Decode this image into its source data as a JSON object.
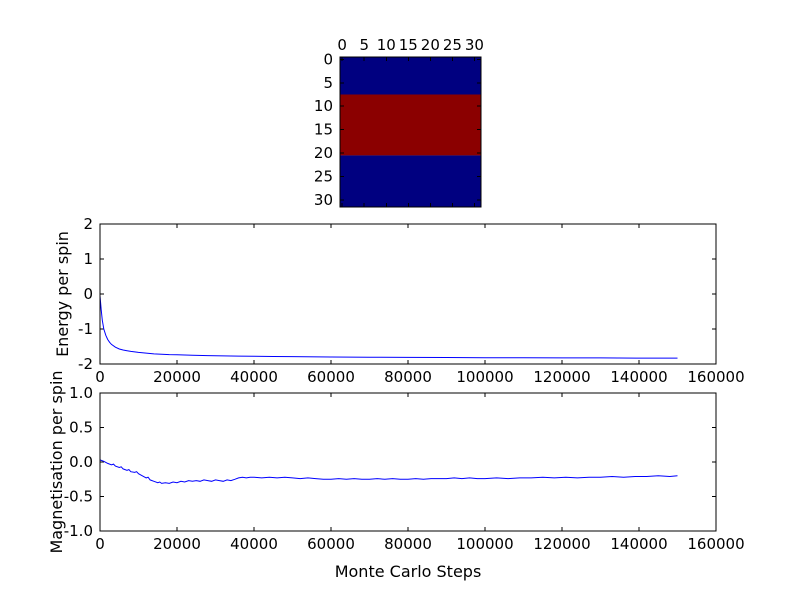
{
  "figure": {
    "background": "#ffffff",
    "line_color": "#0000ff",
    "axis_color": "#000000"
  },
  "chart_data": [
    {
      "type": "heatmap",
      "name": "spin-lattice",
      "description": "32x32 Ising model spin lattice, origin upper, x ticks on top",
      "extent": [
        -0.5,
        31.5
      ],
      "x_ticks": [
        0,
        5,
        10,
        15,
        20,
        25,
        30
      ],
      "x_tick_labels": [
        "0",
        "5",
        "10",
        "15",
        "20",
        "25",
        "30"
      ],
      "y_ticks": [
        0,
        5,
        10,
        15,
        20,
        25,
        30
      ],
      "y_tick_labels": [
        "0",
        "5",
        "10",
        "15",
        "20",
        "25",
        "30"
      ],
      "bands": [
        {
          "row_start": -0.5,
          "row_end": 7.5,
          "value": -1
        },
        {
          "row_start": 7.5,
          "row_end": 20.5,
          "value": 1
        },
        {
          "row_start": 20.5,
          "row_end": 31.5,
          "value": -1
        }
      ],
      "colors": {
        "-1": "#000080",
        "1": "#8b0000"
      }
    },
    {
      "type": "line",
      "name": "energy-per-spin",
      "xlabel": "",
      "ylabel": "Energy per spin",
      "xlim": [
        0,
        160000
      ],
      "ylim": [
        -2,
        2
      ],
      "x_ticks": [
        0,
        20000,
        40000,
        60000,
        80000,
        100000,
        120000,
        140000,
        160000
      ],
      "x_tick_labels": [
        "0",
        "20000",
        "40000",
        "60000",
        "80000",
        "100000",
        "120000",
        "140000",
        "160000"
      ],
      "y_ticks": [
        -2,
        -1,
        0,
        1,
        2
      ],
      "y_tick_labels": [
        "-2",
        "-1",
        "0",
        "1",
        "2"
      ],
      "points": [
        [
          0,
          -0.05
        ],
        [
          300,
          -0.45
        ],
        [
          600,
          -0.75
        ],
        [
          1000,
          -1.0
        ],
        [
          1500,
          -1.18
        ],
        [
          2000,
          -1.3
        ],
        [
          2500,
          -1.38
        ],
        [
          3000,
          -1.44
        ],
        [
          4000,
          -1.52
        ],
        [
          5000,
          -1.57
        ],
        [
          6000,
          -1.6
        ],
        [
          7000,
          -1.62
        ],
        [
          8000,
          -1.64
        ],
        [
          10000,
          -1.67
        ],
        [
          12000,
          -1.69
        ],
        [
          14000,
          -1.71
        ],
        [
          16000,
          -1.72
        ],
        [
          18000,
          -1.73
        ],
        [
          20000,
          -1.735
        ],
        [
          24000,
          -1.75
        ],
        [
          28000,
          -1.76
        ],
        [
          32000,
          -1.77
        ],
        [
          36000,
          -1.775
        ],
        [
          40000,
          -1.78
        ],
        [
          45000,
          -1.785
        ],
        [
          50000,
          -1.79
        ],
        [
          60000,
          -1.8
        ],
        [
          70000,
          -1.805
        ],
        [
          80000,
          -1.81
        ],
        [
          90000,
          -1.815
        ],
        [
          100000,
          -1.82
        ],
        [
          110000,
          -1.82
        ],
        [
          120000,
          -1.825
        ],
        [
          130000,
          -1.825
        ],
        [
          140000,
          -1.83
        ],
        [
          150000,
          -1.83
        ]
      ]
    },
    {
      "type": "line",
      "name": "magnetisation-per-spin",
      "xlabel": "Monte Carlo Steps",
      "ylabel": "Magnetisation per spin",
      "xlim": [
        0,
        160000
      ],
      "ylim": [
        -1,
        1
      ],
      "x_ticks": [
        0,
        20000,
        40000,
        60000,
        80000,
        100000,
        120000,
        140000,
        160000
      ],
      "x_tick_labels": [
        "0",
        "20000",
        "40000",
        "60000",
        "80000",
        "100000",
        "120000",
        "140000",
        "160000"
      ],
      "y_ticks": [
        -1.0,
        -0.5,
        0.0,
        0.5,
        1.0
      ],
      "y_tick_labels": [
        "-1.0",
        "-0.5",
        "0.0",
        "0.5",
        "1.0"
      ],
      "points": [
        [
          0,
          0.03
        ],
        [
          1000,
          0.01
        ],
        [
          2000,
          -0.02
        ],
        [
          3000,
          -0.04
        ],
        [
          3500,
          -0.03
        ],
        [
          4000,
          -0.06
        ],
        [
          5000,
          -0.08
        ],
        [
          5500,
          -0.07
        ],
        [
          6000,
          -0.1
        ],
        [
          7000,
          -0.12
        ],
        [
          7500,
          -0.11
        ],
        [
          8000,
          -0.14
        ],
        [
          9000,
          -0.15
        ],
        [
          9500,
          -0.14
        ],
        [
          10000,
          -0.17
        ],
        [
          11000,
          -0.2
        ],
        [
          12000,
          -0.23
        ],
        [
          12500,
          -0.22
        ],
        [
          13000,
          -0.26
        ],
        [
          14000,
          -0.28
        ],
        [
          15000,
          -0.3
        ],
        [
          15500,
          -0.29
        ],
        [
          16000,
          -0.31
        ],
        [
          17000,
          -0.3
        ],
        [
          18000,
          -0.31
        ],
        [
          19000,
          -0.29
        ],
        [
          20000,
          -0.3
        ],
        [
          21000,
          -0.28
        ],
        [
          22000,
          -0.29
        ],
        [
          23000,
          -0.27
        ],
        [
          24000,
          -0.28
        ],
        [
          25000,
          -0.27
        ],
        [
          26000,
          -0.28
        ],
        [
          27000,
          -0.26
        ],
        [
          28000,
          -0.27
        ],
        [
          29000,
          -0.28
        ],
        [
          30000,
          -0.26
        ],
        [
          31000,
          -0.27
        ],
        [
          32000,
          -0.28
        ],
        [
          33000,
          -0.26
        ],
        [
          34000,
          -0.27
        ],
        [
          35000,
          -0.25
        ],
        [
          36000,
          -0.23
        ],
        [
          37000,
          -0.22
        ],
        [
          38000,
          -0.23
        ],
        [
          39000,
          -0.22
        ],
        [
          40000,
          -0.22
        ],
        [
          42000,
          -0.23
        ],
        [
          44000,
          -0.22
        ],
        [
          46000,
          -0.23
        ],
        [
          48000,
          -0.22
        ],
        [
          50000,
          -0.23
        ],
        [
          52000,
          -0.24
        ],
        [
          54000,
          -0.23
        ],
        [
          56000,
          -0.24
        ],
        [
          58000,
          -0.25
        ],
        [
          60000,
          -0.25
        ],
        [
          62000,
          -0.24
        ],
        [
          64000,
          -0.25
        ],
        [
          66000,
          -0.24
        ],
        [
          68000,
          -0.25
        ],
        [
          70000,
          -0.25
        ],
        [
          72000,
          -0.24
        ],
        [
          74000,
          -0.25
        ],
        [
          76000,
          -0.24
        ],
        [
          78000,
          -0.25
        ],
        [
          80000,
          -0.25
        ],
        [
          82000,
          -0.24
        ],
        [
          84000,
          -0.25
        ],
        [
          86000,
          -0.24
        ],
        [
          88000,
          -0.24
        ],
        [
          90000,
          -0.24
        ],
        [
          92000,
          -0.23
        ],
        [
          94000,
          -0.24
        ],
        [
          96000,
          -0.23
        ],
        [
          98000,
          -0.24
        ],
        [
          100000,
          -0.24
        ],
        [
          103000,
          -0.23
        ],
        [
          106000,
          -0.24
        ],
        [
          109000,
          -0.23
        ],
        [
          112000,
          -0.23
        ],
        [
          115000,
          -0.22
        ],
        [
          118000,
          -0.23
        ],
        [
          121000,
          -0.22
        ],
        [
          124000,
          -0.23
        ],
        [
          127000,
          -0.22
        ],
        [
          130000,
          -0.22
        ],
        [
          133000,
          -0.21
        ],
        [
          136000,
          -0.22
        ],
        [
          139000,
          -0.21
        ],
        [
          142000,
          -0.21
        ],
        [
          145000,
          -0.2
        ],
        [
          148000,
          -0.21
        ],
        [
          150000,
          -0.2
        ]
      ]
    }
  ]
}
